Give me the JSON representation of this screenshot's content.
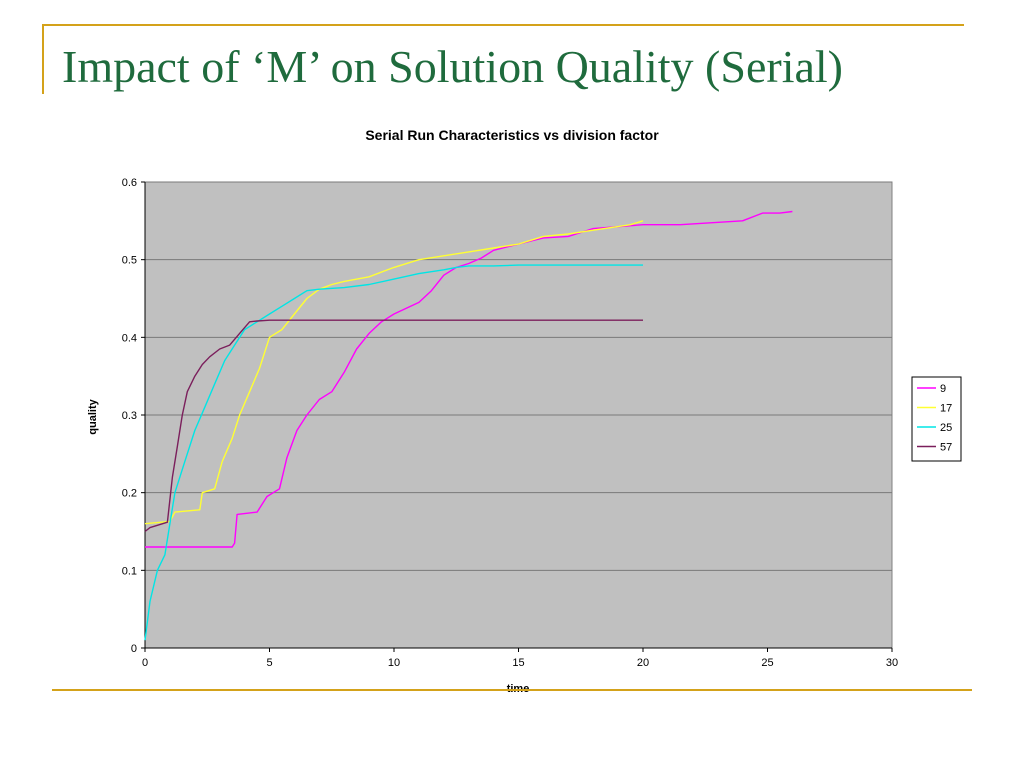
{
  "slide": {
    "title": "Impact of ‘M’ on Solution Quality (Serial)"
  },
  "colors": {
    "accent_line": "#d4a21a",
    "title_text": "#1f6b3d",
    "plot_bg": "#c0c0c0"
  },
  "chart_data": {
    "type": "line",
    "title": "Serial Run Characteristics vs division factor",
    "xlabel": "time",
    "ylabel": "quality",
    "xlim": [
      0,
      30
    ],
    "ylim": [
      0,
      0.6
    ],
    "xticks": [
      0,
      5,
      10,
      15,
      20,
      25,
      30
    ],
    "yticks": [
      0,
      0.1,
      0.2,
      0.3,
      0.4,
      0.5,
      0.6
    ],
    "grid": "horizontal",
    "legend_position": "right",
    "series": [
      {
        "name": "9",
        "color": "#ff00ff",
        "x": [
          0,
          3.5,
          3.6,
          3.7,
          4.5,
          4.9,
          5.4,
          5.7,
          6.1,
          6.5,
          7,
          7.5,
          8,
          8.5,
          9,
          9.5,
          10,
          11,
          11.5,
          12,
          12.5,
          13,
          13.5,
          14,
          15,
          16,
          17,
          18,
          20,
          21.5,
          24,
          24.8,
          25.5,
          26
        ],
        "y": [
          0.13,
          0.13,
          0.135,
          0.172,
          0.175,
          0.195,
          0.205,
          0.245,
          0.28,
          0.3,
          0.32,
          0.33,
          0.355,
          0.385,
          0.405,
          0.42,
          0.43,
          0.445,
          0.46,
          0.48,
          0.49,
          0.495,
          0.502,
          0.512,
          0.52,
          0.528,
          0.53,
          0.54,
          0.545,
          0.545,
          0.55,
          0.56,
          0.56,
          0.562
        ]
      },
      {
        "name": "17",
        "color": "#ffff33",
        "x": [
          0,
          1,
          1.2,
          2.2,
          2.3,
          2.8,
          3.1,
          3.5,
          3.8,
          4.2,
          4.6,
          5,
          5.5,
          6,
          6.5,
          7,
          7.5,
          8,
          9,
          10,
          11,
          12,
          13,
          14,
          15,
          16,
          17,
          18,
          19.5,
          20
        ],
        "y": [
          0.16,
          0.163,
          0.175,
          0.178,
          0.2,
          0.205,
          0.24,
          0.27,
          0.3,
          0.33,
          0.36,
          0.4,
          0.41,
          0.43,
          0.45,
          0.462,
          0.468,
          0.472,
          0.478,
          0.49,
          0.5,
          0.505,
          0.51,
          0.515,
          0.52,
          0.53,
          0.533,
          0.538,
          0.545,
          0.55
        ]
      },
      {
        "name": "25",
        "color": "#00e5e5",
        "x": [
          0,
          0.2,
          0.5,
          0.8,
          1,
          1.2,
          1.6,
          2,
          2.4,
          2.8,
          3.2,
          3.6,
          4,
          4.5,
          5,
          5.5,
          6,
          6.5,
          7,
          8,
          9,
          10,
          11,
          12,
          12.5,
          13,
          14,
          15,
          20
        ],
        "y": [
          0.01,
          0.06,
          0.1,
          0.12,
          0.16,
          0.2,
          0.24,
          0.28,
          0.31,
          0.34,
          0.37,
          0.39,
          0.41,
          0.42,
          0.43,
          0.44,
          0.45,
          0.46,
          0.462,
          0.464,
          0.468,
          0.475,
          0.482,
          0.487,
          0.49,
          0.492,
          0.492,
          0.493,
          0.493
        ]
      },
      {
        "name": "57",
        "color": "#7b1f5c",
        "x": [
          0,
          0.2,
          0.5,
          0.9,
          1.1,
          1.3,
          1.5,
          1.7,
          2,
          2.3,
          2.6,
          3,
          3.4,
          3.8,
          4.2,
          4.5,
          5,
          10,
          15,
          20
        ],
        "y": [
          0.15,
          0.155,
          0.158,
          0.162,
          0.22,
          0.26,
          0.3,
          0.33,
          0.35,
          0.365,
          0.375,
          0.385,
          0.39,
          0.405,
          0.42,
          0.421,
          0.422,
          0.422,
          0.422,
          0.422
        ]
      }
    ]
  }
}
